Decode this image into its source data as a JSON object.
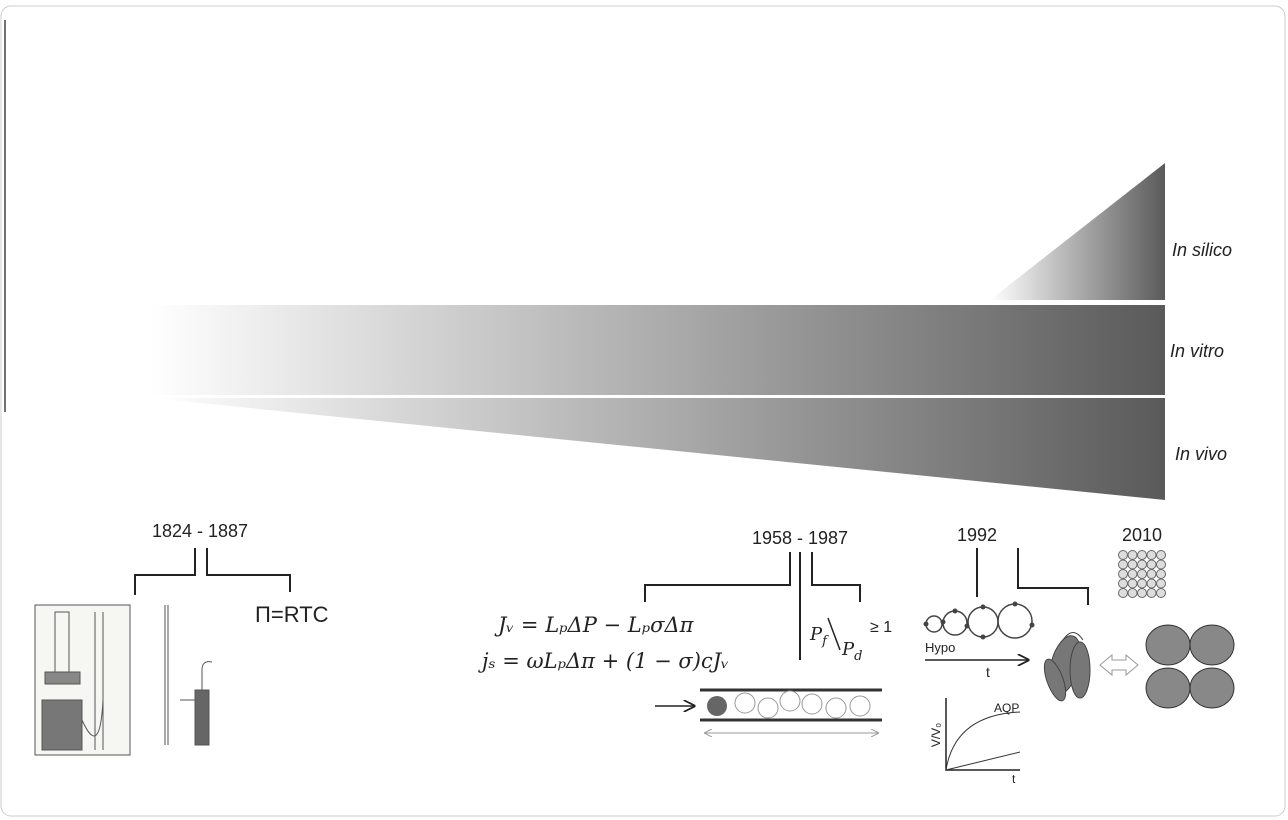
{
  "bands": {
    "silico": "In silico",
    "vitro": "In vitro",
    "vivo": "In vivo"
  },
  "period_1": {
    "label": "1824 - 1887",
    "formula": "Π=RTC"
  },
  "period_2": {
    "label": "1958 - 1987",
    "equation_1": "Jᵥ = LₚΔP − LₚσΔπ",
    "equation_2": "jₛ = ωLₚΔπ + (1 − σ)cJᵥ",
    "ratio": {
      "numerator": "P",
      "numerator_sub": "f",
      "denominator": "P",
      "denominator_sub": "d",
      "relation": "≥ 1"
    }
  },
  "period_3": {
    "label": "1992",
    "hypo": "Hypo",
    "time_axis": "t",
    "graph_y": "V/V₀",
    "graph_curve": "AQP",
    "graph_x": "t"
  },
  "period_4": {
    "label": "2010"
  }
}
